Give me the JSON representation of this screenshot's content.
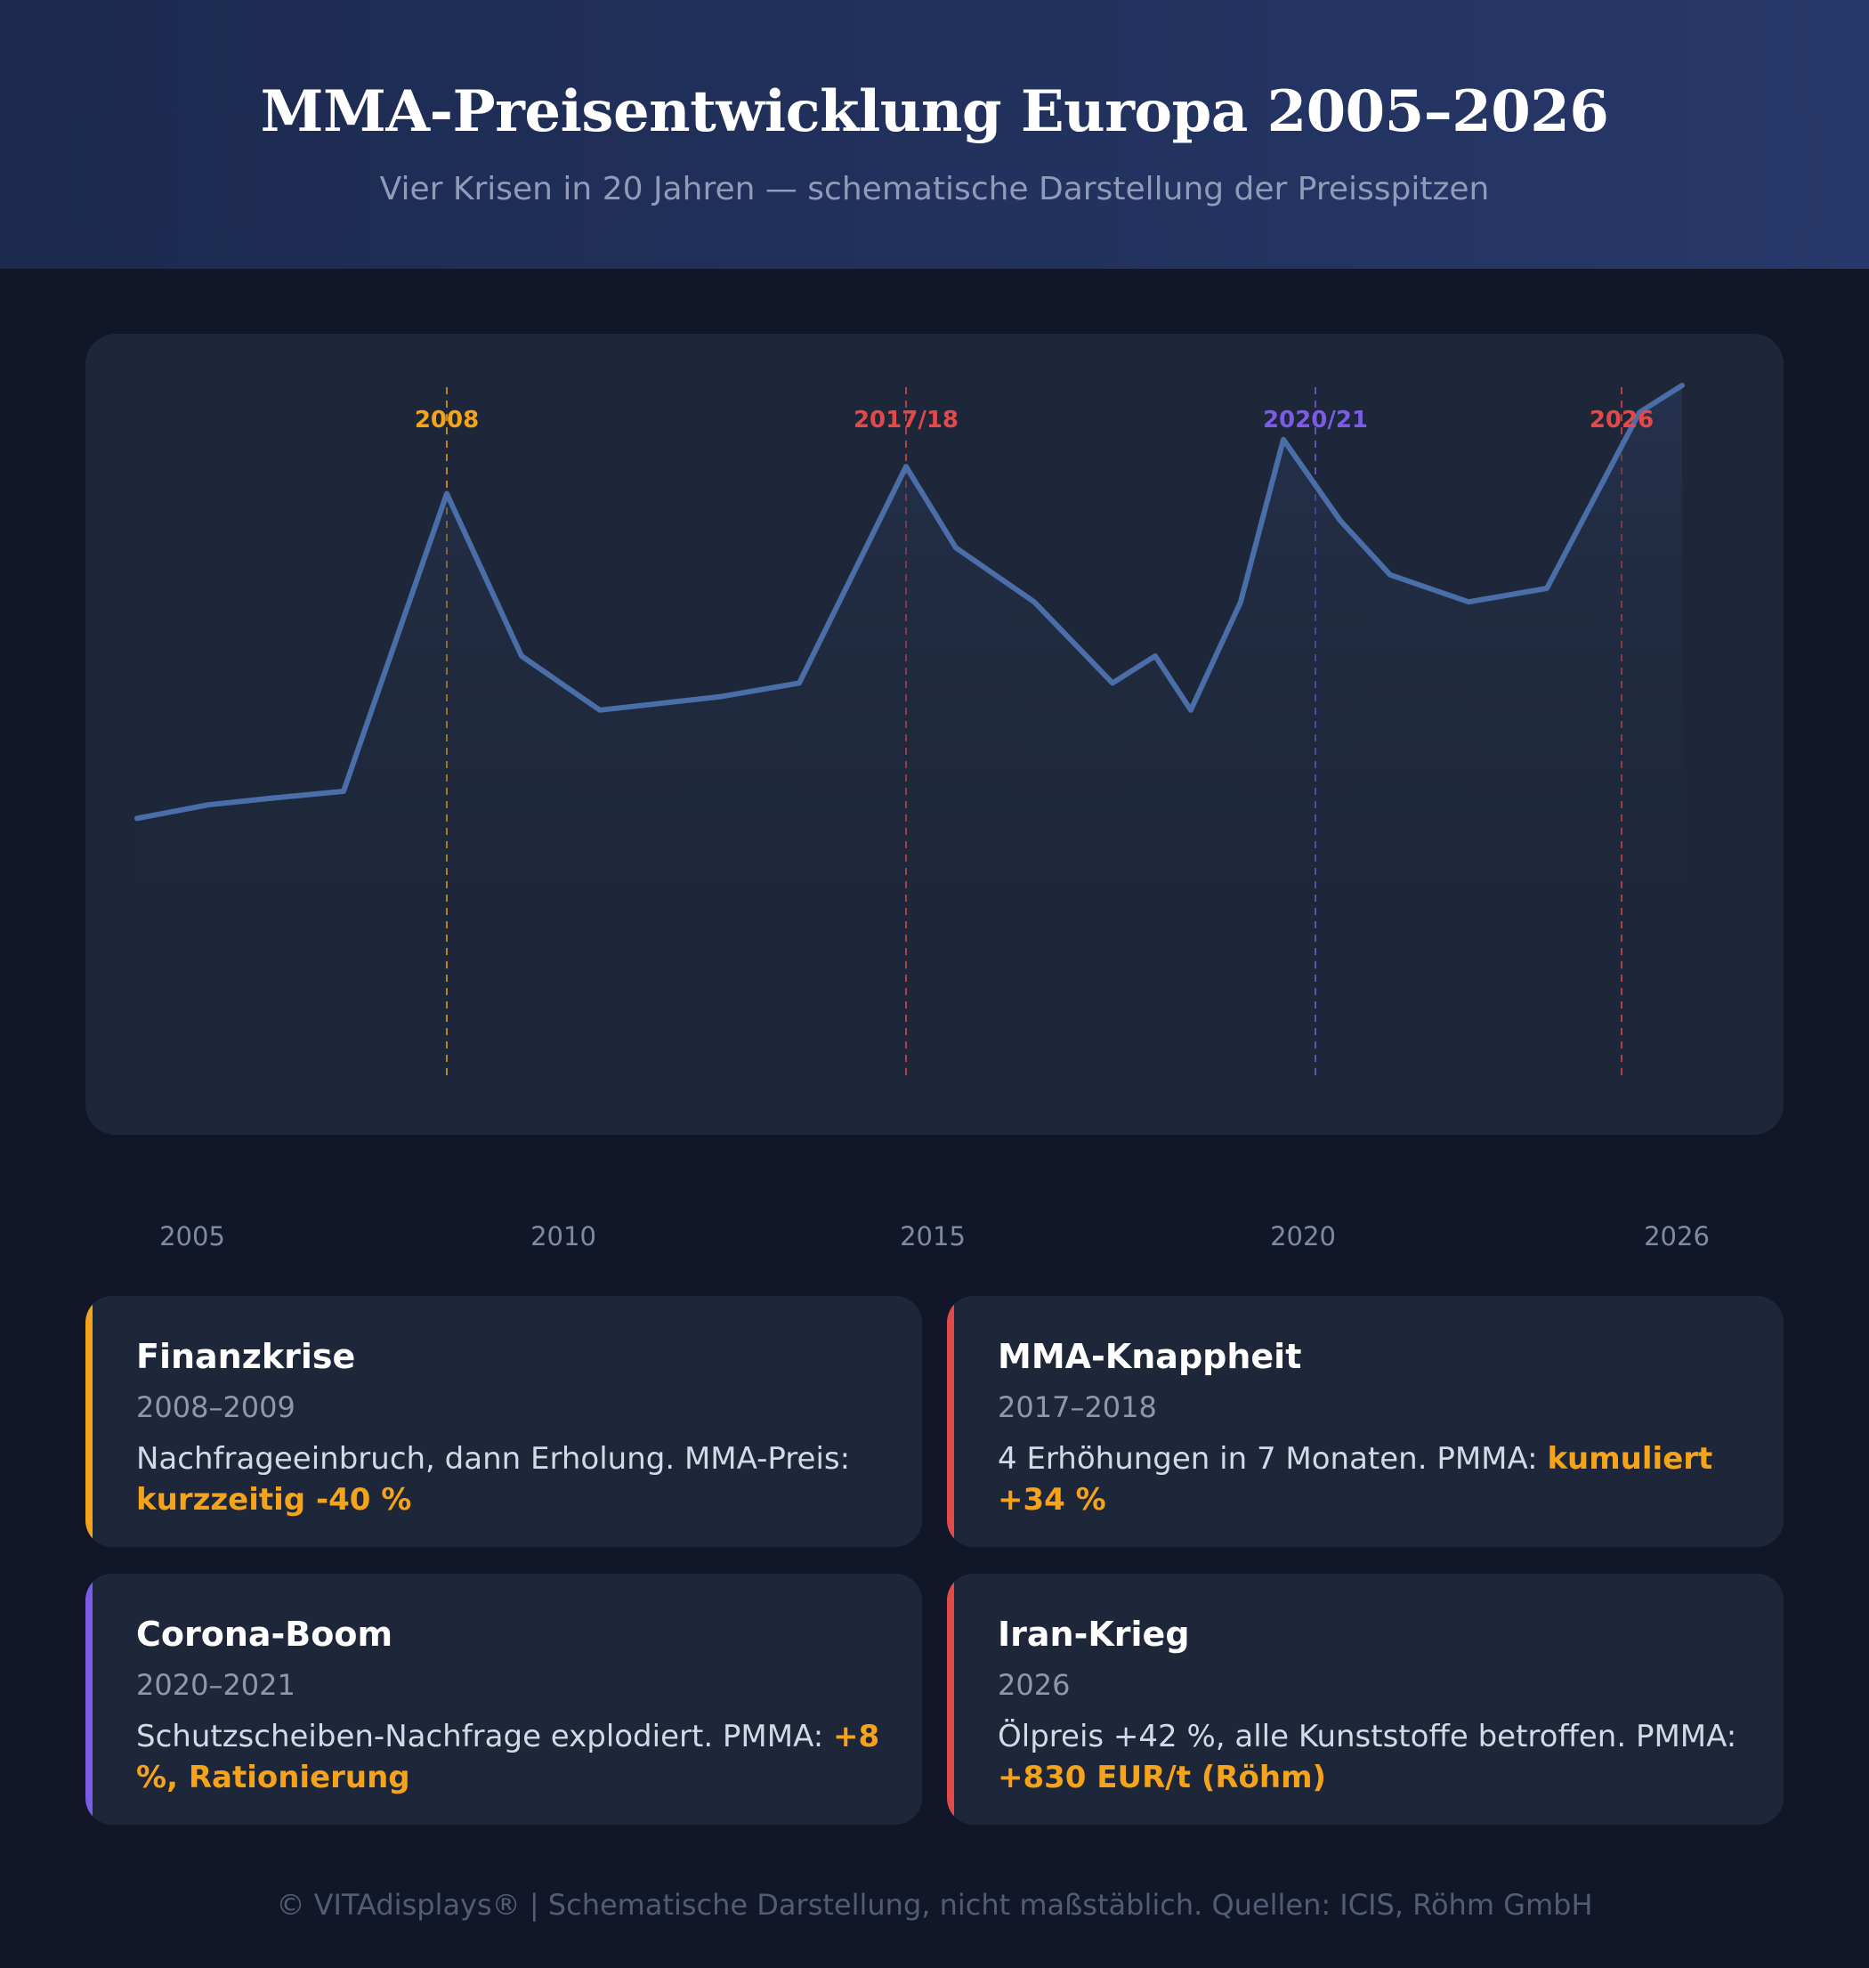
{
  "header": {
    "title": "MMA-Preisentwicklung Europa 2005–2026",
    "subtitle": "Vier Krisen in 20 Jahren — schematische Darstellung der Preisspitzen"
  },
  "colors": {
    "line": "#4a6ea8",
    "orange": "#f5a31a",
    "red": "#e24a4a",
    "purple": "#7c5ce6"
  },
  "chart_data": {
    "type": "line",
    "x_ticks": [
      "2005",
      "2010",
      "2015",
      "2020",
      "2026"
    ],
    "xlim": [
      2004.3,
      2026.7
    ],
    "ylim": [
      0,
      100
    ],
    "y_axis_labels": false,
    "grid": false,
    "series": [
      {
        "x": [
          2004.3,
          2005.3,
          2006.2,
          2007.2,
          2008.65,
          2009.7,
          2010.8,
          2012.5,
          2013.6,
          2015.1,
          2015.8,
          2016.9,
          2018.0,
          2018.6,
          2019.1,
          2019.8,
          2020.4,
          2021.2,
          2021.9,
          2023.0,
          2024.1,
          2025.4,
          2026.0
        ],
        "values": [
          31,
          33,
          34,
          35,
          79,
          55,
          47,
          49,
          51,
          83,
          71,
          63,
          51,
          55,
          47,
          63,
          87,
          75,
          67,
          63,
          65,
          91,
          95
        ]
      }
    ],
    "crisis_markers": [
      {
        "label": "2008",
        "x": 2008.65,
        "color": "#f5a31a"
      },
      {
        "label": "2017/18",
        "x": 2015.1,
        "color": "#e24a4a"
      },
      {
        "label": "2020/21",
        "x": 2020.85,
        "color": "#7c5ce6"
      },
      {
        "label": "2026",
        "x": 2025.15,
        "color": "#e24a4a"
      }
    ]
  },
  "cards": [
    {
      "title": "Finanzkrise",
      "years": "2008–2009",
      "text": "Nachfrageeinbruch, dann Erholung. MMA-Preis: ",
      "highlight": "kurzzeitig -40 %",
      "accent": "#f5a31a"
    },
    {
      "title": "MMA-Knappheit",
      "years": "2017–2018",
      "text": "4 Erhöhungen in 7 Monaten. PMMA: ",
      "highlight": "kumuliert +34 %",
      "accent": "#e24a4a"
    },
    {
      "title": "Corona-Boom",
      "years": "2020–2021",
      "text": "Schutzscheiben-Nachfrage explodiert. PMMA: ",
      "highlight": "+8 %, Rationierung",
      "accent": "#7c5ce6"
    },
    {
      "title": "Iran-Krieg",
      "years": "2026",
      "text": "Ölpreis +42 %, alle Kunststoffe betroffen. PMMA: ",
      "highlight": "+830 EUR/t (Röhm)",
      "accent": "#e24a4a"
    }
  ],
  "footer": "© VITAdisplays® | Schematische Darstellung, nicht maßstäblich. Quellen: ICIS, Röhm GmbH"
}
